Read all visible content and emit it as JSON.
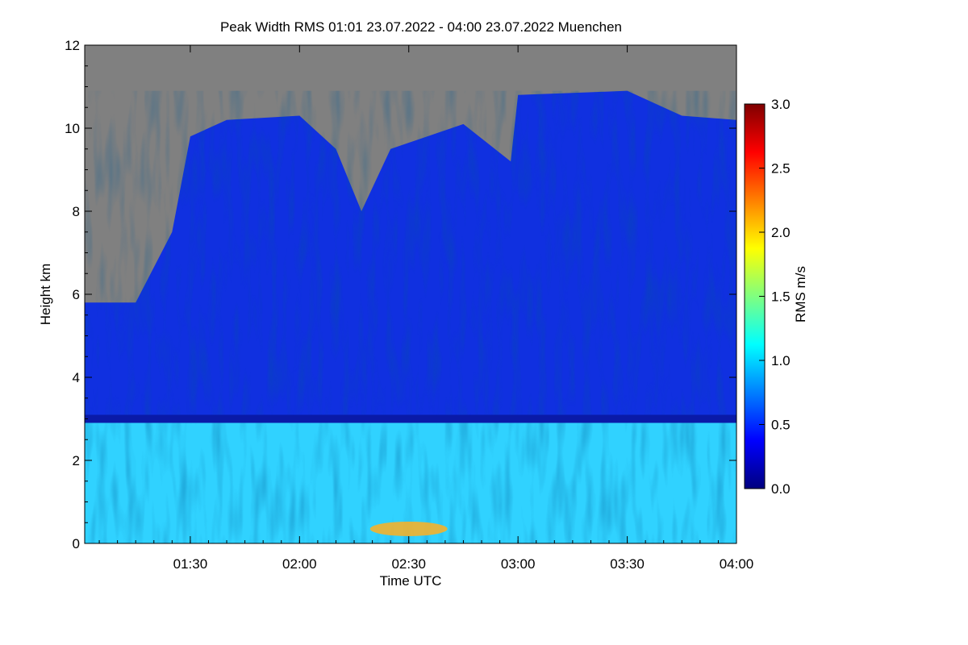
{
  "chart_data": {
    "type": "heatmap",
    "title": "Peak Width RMS   01:01 23.07.2022 - 04:00 23.07.2022 Muenchen",
    "xlabel": "Time UTC",
    "ylabel": "Height km",
    "colorbar_label": "RMS m/s",
    "xlim": [
      "01:01",
      "04:00"
    ],
    "ylim": [
      0,
      12
    ],
    "clim": [
      0.0,
      3.0
    ],
    "colormap": "jet",
    "nodata_color": "#808080",
    "x_ticks": [
      "01:30",
      "02:00",
      "02:30",
      "03:00",
      "03:30",
      "04:00"
    ],
    "y_ticks": [
      "0",
      "2",
      "4",
      "6",
      "8",
      "10",
      "12"
    ],
    "colorbar_ticks": [
      "0.0",
      "0.5",
      "1.0",
      "1.5",
      "2.0",
      "2.5",
      "3.0"
    ],
    "boundary_layer_top_km": 3.0,
    "cloud_top_km": [
      {
        "time": "01:01",
        "height": 5.8
      },
      {
        "time": "01:15",
        "height": 5.8
      },
      {
        "time": "01:25",
        "height": 7.5
      },
      {
        "time": "01:30",
        "height": 9.8
      },
      {
        "time": "01:40",
        "height": 10.2
      },
      {
        "time": "02:00",
        "height": 10.3
      },
      {
        "time": "02:10",
        "height": 9.5
      },
      {
        "time": "02:17",
        "height": 8.0
      },
      {
        "time": "02:25",
        "height": 9.5
      },
      {
        "time": "02:45",
        "height": 10.1
      },
      {
        "time": "02:58",
        "height": 9.2
      },
      {
        "time": "03:00",
        "height": 10.8
      },
      {
        "time": "03:30",
        "height": 10.9
      },
      {
        "time": "03:45",
        "height": 10.3
      },
      {
        "time": "04:00",
        "height": 10.2
      }
    ]
  }
}
